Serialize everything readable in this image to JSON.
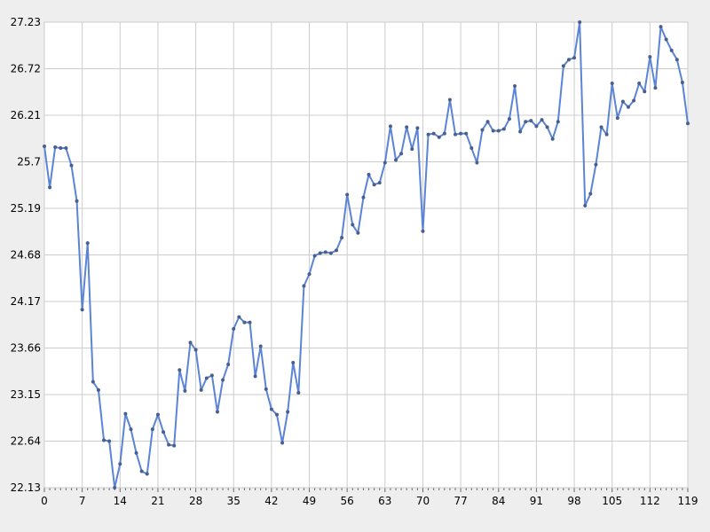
{
  "chart_data": {
    "type": "line",
    "title": "",
    "xlabel": "",
    "ylabel": "",
    "xlim": [
      0,
      119
    ],
    "ylim": [
      22.13,
      27.23
    ],
    "grid": true,
    "legend": "none",
    "x_ticks": [
      "0",
      "7",
      "14",
      "21",
      "28",
      "35",
      "42",
      "49",
      "56",
      "63",
      "70",
      "77",
      "84",
      "91",
      "98",
      "105",
      "112",
      "119"
    ],
    "y_ticks": [
      "22.13",
      "22.64",
      "23.15",
      "23.66",
      "24.17",
      "24.68",
      "25.19",
      "25.7",
      "26.21",
      "26.72",
      "27.23"
    ],
    "colors": {
      "line": "#5b84d6",
      "marker": "#4a5f8c",
      "grid": "#cccccc",
      "plot_bg": "#ffffff",
      "page_bg": "#eeeeee"
    },
    "series": [
      {
        "values": [
          25.87,
          25.42,
          25.86,
          25.85,
          25.85,
          25.66,
          25.27,
          24.08,
          24.81,
          23.29,
          23.2,
          22.65,
          22.64,
          22.13,
          22.39,
          22.94,
          22.77,
          22.51,
          22.31,
          22.28,
          22.77,
          22.93,
          22.74,
          22.6,
          22.59,
          23.42,
          23.19,
          23.72,
          23.64,
          23.2,
          23.33,
          23.36,
          22.96,
          23.31,
          23.48,
          23.87,
          24.0,
          23.94,
          23.94,
          23.35,
          23.68,
          23.21,
          22.99,
          22.93,
          22.62,
          22.96,
          23.5,
          23.17,
          24.34,
          24.47,
          24.67,
          24.7,
          24.71,
          24.7,
          24.73,
          24.87,
          25.34,
          25.01,
          24.92,
          25.31,
          25.56,
          25.45,
          25.47,
          25.69,
          26.09,
          25.72,
          25.79,
          26.08,
          25.84,
          26.07,
          24.94,
          26.0,
          26.01,
          25.97,
          26.01,
          26.38,
          26.0,
          26.01,
          26.01,
          25.85,
          25.69,
          26.05,
          26.14,
          26.04,
          26.04,
          26.06,
          26.17,
          26.53,
          26.03,
          26.14,
          26.15,
          26.09,
          26.16,
          26.08,
          25.95,
          26.14,
          26.75,
          26.82,
          26.84,
          27.23,
          25.22,
          25.35,
          25.67,
          26.08,
          26.0,
          26.56,
          26.18,
          26.36,
          26.3,
          26.37,
          26.56,
          26.47,
          26.85,
          26.51,
          27.18,
          27.04,
          26.92,
          26.82,
          26.57,
          26.12
        ]
      }
    ]
  }
}
